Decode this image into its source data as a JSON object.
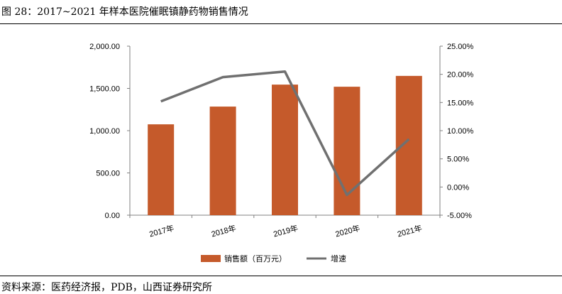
{
  "caption": "图 28：2017~2021 年样本医院催眠镇静药物销售情况",
  "source": "资料来源：医药经济报，PDB，山西证券研究所",
  "chart_data": {
    "type": "bar",
    "categories": [
      "2017年",
      "2018年",
      "2019年",
      "2020年",
      "2021年"
    ],
    "series": [
      {
        "name": "销售额（百万元）",
        "type": "bar",
        "axis": "left",
        "color": "#C55A2B",
        "values": [
          1075,
          1285,
          1545,
          1520,
          1648
        ]
      },
      {
        "name": "增速",
        "type": "line",
        "axis": "right",
        "color": "#707070",
        "values": [
          15.2,
          19.5,
          20.5,
          -1.4,
          8.5
        ]
      }
    ],
    "left_axis": {
      "ylim": [
        0,
        2000
      ],
      "ticks": [
        "0.00",
        "500.00",
        "1,000.00",
        "1,500.00",
        "2,000.00"
      ]
    },
    "right_axis": {
      "ylim": [
        -5,
        25
      ],
      "ticks": [
        "-5.00%",
        "0.00%",
        "5.00%",
        "10.00%",
        "15.00%",
        "20.00%",
        "25.00%"
      ]
    },
    "grid": false,
    "legend_position": "bottom"
  }
}
